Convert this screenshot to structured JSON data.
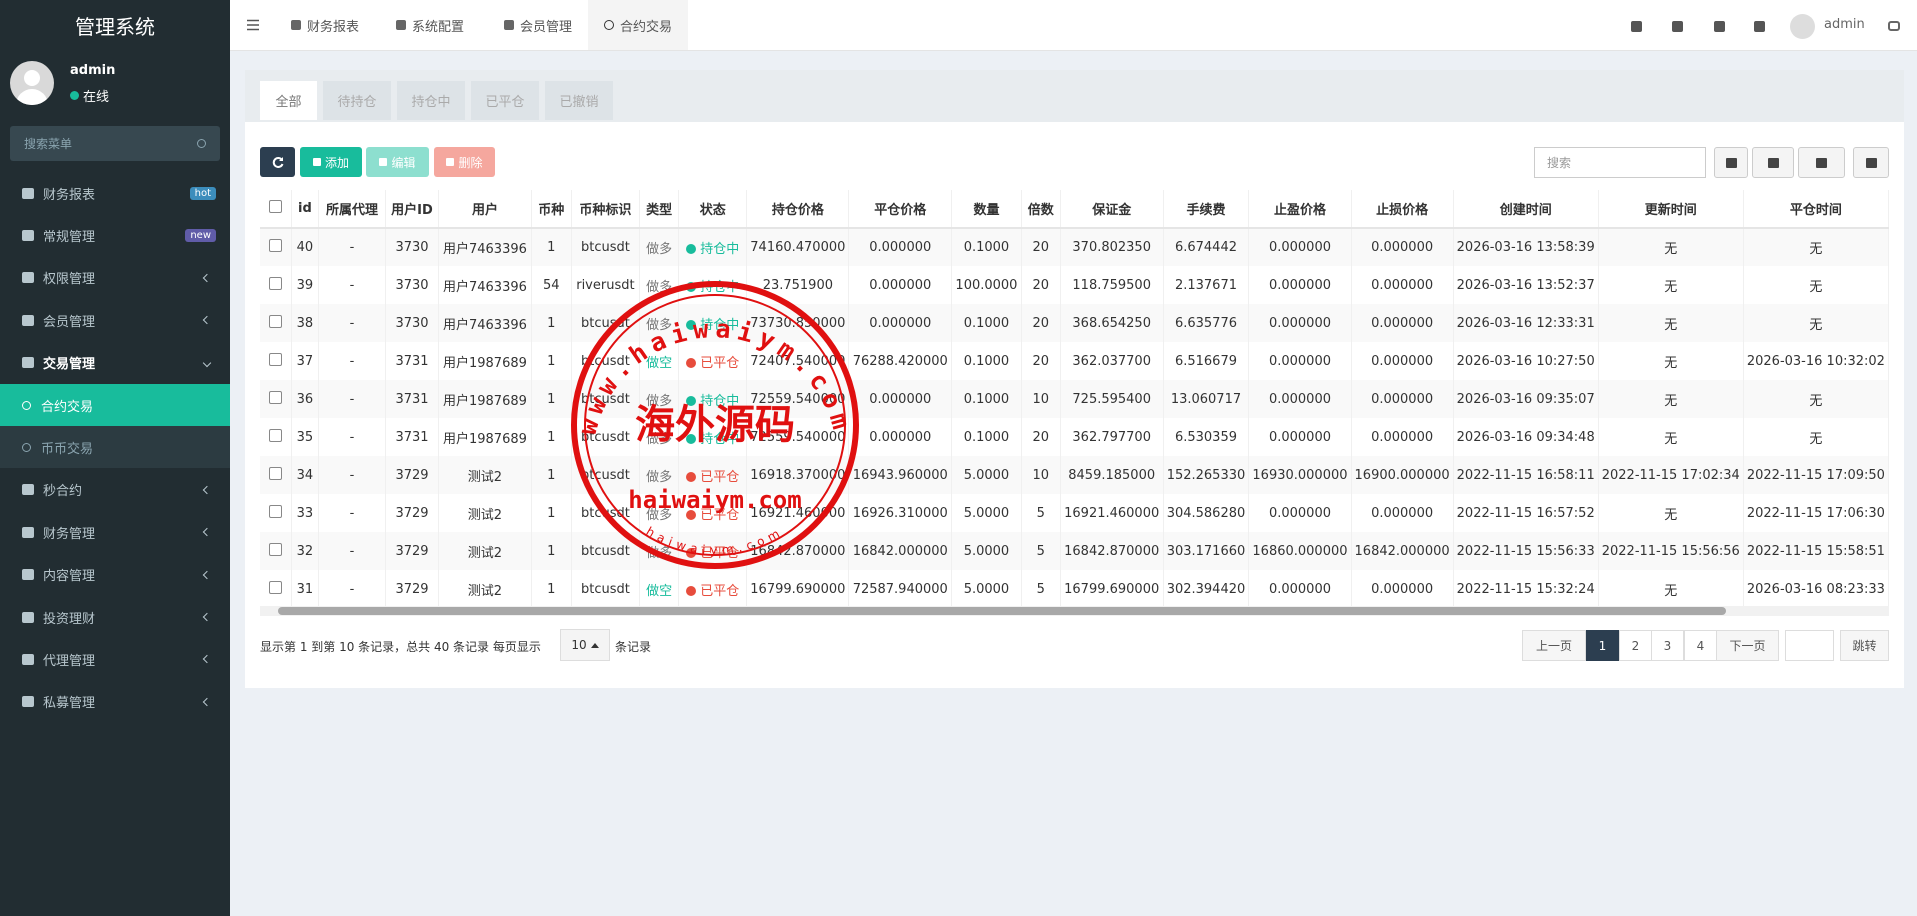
{
  "sidebar": {
    "logo": "管理系统",
    "user": {
      "name": "admin",
      "status": "在线"
    },
    "search_placeholder": "搜索菜单",
    "menu": [
      {
        "label": "财务报表",
        "badge": "hot"
      },
      {
        "label": "常规管理",
        "badge": "new"
      },
      {
        "label": "权限管理"
      },
      {
        "label": "会员管理"
      },
      {
        "label": "交易管理",
        "children": [
          "合约交易",
          "币币交易"
        ]
      },
      {
        "label": "秒合约"
      },
      {
        "label": "财务管理"
      },
      {
        "label": "内容管理"
      },
      {
        "label": "投资理财"
      },
      {
        "label": "代理管理"
      },
      {
        "label": "私募管理"
      }
    ]
  },
  "topbar": {
    "tabs": [
      "财务报表",
      "系统配置",
      "会员管理",
      "合约交易"
    ],
    "user": "admin"
  },
  "filter_tabs": [
    "全部",
    "待持仓",
    "持仓中",
    "已平仓",
    "已撤销"
  ],
  "toolbar": {
    "buttons": [
      "添加",
      "编辑",
      "删除"
    ],
    "search_placeholder": "搜索"
  },
  "table": {
    "columns": [
      "id",
      "所属代理",
      "用户ID",
      "用户",
      "币种",
      "币种标识",
      "类型",
      "状态",
      "持仓价格",
      "平仓价格",
      "数量",
      "倍数",
      "保证金",
      "手续费",
      "止盈价格",
      "止损价格",
      "创建时间",
      "更新时间",
      "平仓时间"
    ],
    "rows": [
      [
        "40",
        "-",
        "3730",
        "用户7463396",
        "1",
        "btcusdt",
        "做多",
        "持仓中",
        "74160.470000",
        "0.000000",
        "0.1000",
        "20",
        "370.802350",
        "6.674442",
        "0.000000",
        "0.000000",
        "2026-03-16 13:58:39",
        "无",
        "无"
      ],
      [
        "39",
        "-",
        "3730",
        "用户7463396",
        "54",
        "riverusdt",
        "做多",
        "持仓中",
        "23.751900",
        "0.000000",
        "100.0000",
        "20",
        "118.759500",
        "2.137671",
        "0.000000",
        "0.000000",
        "2026-03-16 13:52:37",
        "无",
        "无"
      ],
      [
        "38",
        "-",
        "3730",
        "用户7463396",
        "1",
        "btcusdt",
        "做多",
        "持仓中",
        "73730.850000",
        "0.000000",
        "0.1000",
        "20",
        "368.654250",
        "6.635776",
        "0.000000",
        "0.000000",
        "2026-03-16 12:33:31",
        "无",
        "无"
      ],
      [
        "37",
        "-",
        "3731",
        "用户1987689",
        "1",
        "btcusdt",
        "做空",
        "已平仓",
        "72407.540000",
        "76288.420000",
        "0.1000",
        "20",
        "362.037700",
        "6.516679",
        "0.000000",
        "0.000000",
        "2026-03-16 10:27:50",
        "无",
        "2026-03-16 10:32:02"
      ],
      [
        "36",
        "-",
        "3731",
        "用户1987689",
        "1",
        "btcusdt",
        "做多",
        "持仓中",
        "72559.540000",
        "0.000000",
        "0.1000",
        "10",
        "725.595400",
        "13.060717",
        "0.000000",
        "0.000000",
        "2026-03-16 09:35:07",
        "无",
        "无"
      ],
      [
        "35",
        "-",
        "3731",
        "用户1987689",
        "1",
        "btcusdt",
        "做多",
        "持仓中",
        "72559.540000",
        "0.000000",
        "0.1000",
        "20",
        "362.797700",
        "6.530359",
        "0.000000",
        "0.000000",
        "2026-03-16 09:34:48",
        "无",
        "无"
      ],
      [
        "34",
        "-",
        "3729",
        "测试2",
        "1",
        "btcusdt",
        "做多",
        "已平仓",
        "16918.370000",
        "16943.960000",
        "5.0000",
        "10",
        "8459.185000",
        "152.265330",
        "16930.000000",
        "16900.000000",
        "2022-11-15 16:58:11",
        "2022-11-15 17:02:34",
        "2022-11-15 17:09:50"
      ],
      [
        "33",
        "-",
        "3729",
        "测试2",
        "1",
        "btcusdt",
        "做多",
        "已平仓",
        "16921.460000",
        "16926.310000",
        "5.0000",
        "5",
        "16921.460000",
        "304.586280",
        "0.000000",
        "0.000000",
        "2022-11-15 16:57:52",
        "无",
        "2022-11-15 17:06:30"
      ],
      [
        "32",
        "-",
        "3729",
        "测试2",
        "1",
        "btcusdt",
        "做多",
        "已平仓",
        "16842.870000",
        "16842.000000",
        "5.0000",
        "5",
        "16842.870000",
        "303.171660",
        "16860.000000",
        "16842.000000",
        "2022-11-15 15:56:33",
        "2022-11-15 15:56:56",
        "2022-11-15 15:58:51"
      ],
      [
        "31",
        "-",
        "3729",
        "测试2",
        "1",
        "btcusdt",
        "做空",
        "已平仓",
        "16799.690000",
        "72587.940000",
        "5.0000",
        "5",
        "16799.690000",
        "302.394420",
        "0.000000",
        "0.000000",
        "2022-11-15 15:32:24",
        "无",
        "2026-03-16 08:23:33"
      ]
    ]
  },
  "pagination": {
    "summary": "显示第 1 到第 10 条记录，总共 40 条记录 每页显示",
    "page_size": "10",
    "suffix": "条记录",
    "prev": "上一页",
    "pages": [
      "1",
      "2",
      "3",
      "4"
    ],
    "next": "下一页",
    "jump": "跳转"
  },
  "watermark": {
    "arc": "www.haiwaiym.com",
    "center": "海外源码",
    "domain": "haiwaiym.com",
    "small": "haiwaiym.com"
  }
}
